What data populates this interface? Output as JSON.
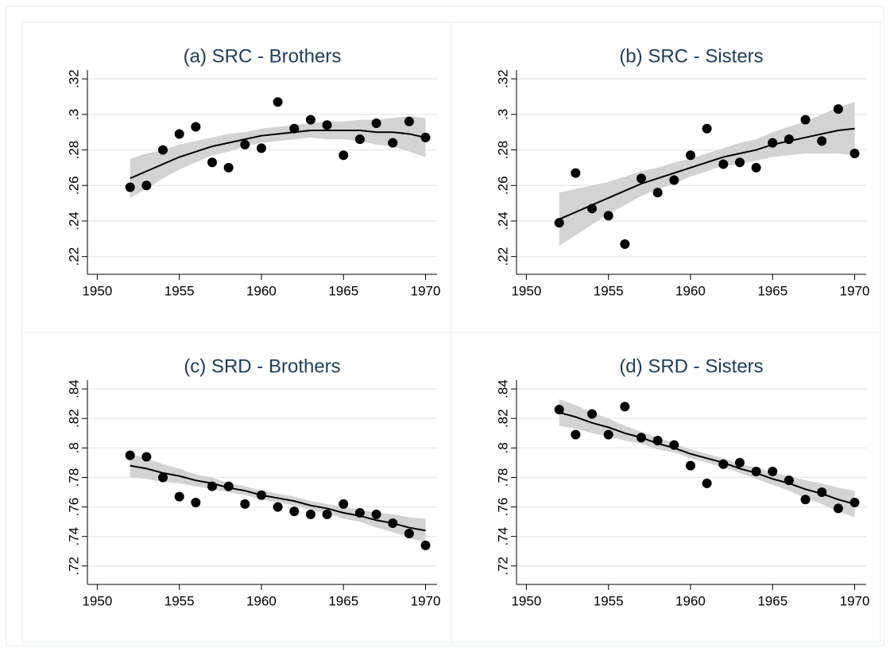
{
  "chart_data": [
    {
      "type": "scatter",
      "title": "(a) SRC - Brothers",
      "x": [
        1952,
        1953,
        1954,
        1955,
        1956,
        1957,
        1958,
        1959,
        1960,
        1961,
        1962,
        1963,
        1964,
        1965,
        1966,
        1967,
        1968,
        1969,
        1970
      ],
      "values": [
        0.259,
        0.26,
        0.28,
        0.289,
        0.293,
        0.273,
        0.27,
        0.283,
        0.281,
        0.307,
        0.292,
        0.297,
        0.294,
        0.277,
        0.286,
        0.295,
        0.284,
        0.296,
        0.287
      ],
      "fit": [
        0.264,
        0.268,
        0.272,
        0.276,
        0.279,
        0.282,
        0.284,
        0.286,
        0.288,
        0.289,
        0.29,
        0.291,
        0.291,
        0.291,
        0.291,
        0.29,
        0.29,
        0.289,
        0.287
      ],
      "ci_lower": [
        0.253,
        0.258,
        0.264,
        0.269,
        0.273,
        0.277,
        0.279,
        0.282,
        0.284,
        0.285,
        0.286,
        0.287,
        0.286,
        0.286,
        0.285,
        0.283,
        0.282,
        0.279,
        0.276
      ],
      "ci_upper": [
        0.275,
        0.278,
        0.28,
        0.283,
        0.285,
        0.287,
        0.289,
        0.29,
        0.292,
        0.293,
        0.294,
        0.295,
        0.296,
        0.296,
        0.297,
        0.297,
        0.298,
        0.299,
        0.298
      ],
      "color": "#000000",
      "ci_color": "#d3d3d3",
      "xlim": [
        1949.4,
        1970.7
      ],
      "xticks": [
        1950,
        1955,
        1960,
        1965,
        1970
      ],
      "ylim": [
        0.21,
        0.325
      ],
      "yticks": [
        {
          "value": 0.22,
          "label": ".22"
        },
        {
          "value": 0.24,
          "label": ".24"
        },
        {
          "value": 0.26,
          "label": ".26"
        },
        {
          "value": 0.28,
          "label": ".28"
        },
        {
          "value": 0.3,
          "label": ".3"
        },
        {
          "value": 0.32,
          "label": ".32"
        }
      ],
      "grid": true
    },
    {
      "type": "scatter",
      "title": "(b) SRC - Sisters",
      "x": [
        1952,
        1953,
        1954,
        1955,
        1956,
        1957,
        1958,
        1959,
        1960,
        1961,
        1962,
        1963,
        1964,
        1965,
        1966,
        1967,
        1968,
        1969,
        1970
      ],
      "values": [
        0.239,
        0.267,
        0.247,
        0.243,
        0.227,
        0.264,
        0.256,
        0.263,
        0.277,
        0.292,
        0.272,
        0.273,
        0.27,
        0.284,
        0.286,
        0.297,
        0.285,
        0.303,
        0.278
      ],
      "fit": [
        0.241,
        0.245,
        0.249,
        0.253,
        0.257,
        0.261,
        0.264,
        0.267,
        0.27,
        0.273,
        0.276,
        0.278,
        0.28,
        0.283,
        0.285,
        0.287,
        0.289,
        0.291,
        0.292
      ],
      "ci_lower": [
        0.226,
        0.232,
        0.238,
        0.244,
        0.249,
        0.254,
        0.258,
        0.261,
        0.265,
        0.268,
        0.271,
        0.272,
        0.274,
        0.276,
        0.277,
        0.278,
        0.278,
        0.278,
        0.277
      ],
      "ci_upper": [
        0.256,
        0.258,
        0.26,
        0.262,
        0.265,
        0.268,
        0.27,
        0.273,
        0.275,
        0.278,
        0.281,
        0.284,
        0.286,
        0.29,
        0.293,
        0.296,
        0.3,
        0.304,
        0.307
      ],
      "color": "#000000",
      "ci_color": "#d3d3d3",
      "xlim": [
        1949.4,
        1970.7
      ],
      "xticks": [
        1950,
        1955,
        1960,
        1965,
        1970
      ],
      "ylim": [
        0.21,
        0.325
      ],
      "yticks": [
        {
          "value": 0.22,
          "label": ".22"
        },
        {
          "value": 0.24,
          "label": ".24"
        },
        {
          "value": 0.26,
          "label": ".26"
        },
        {
          "value": 0.28,
          "label": ".28"
        },
        {
          "value": 0.3,
          "label": ".3"
        },
        {
          "value": 0.32,
          "label": ".32"
        }
      ],
      "grid": true
    },
    {
      "type": "scatter",
      "title": "(c) SRD - Brothers",
      "x": [
        1952,
        1953,
        1954,
        1955,
        1956,
        1957,
        1958,
        1959,
        1960,
        1961,
        1962,
        1963,
        1964,
        1965,
        1966,
        1967,
        1968,
        1969,
        1970
      ],
      "values": [
        0.795,
        0.794,
        0.78,
        0.767,
        0.763,
        0.774,
        0.774,
        0.762,
        0.768,
        0.76,
        0.757,
        0.755,
        0.755,
        0.762,
        0.756,
        0.755,
        0.749,
        0.742,
        0.734
      ],
      "fit": [
        0.788,
        0.786,
        0.783,
        0.781,
        0.778,
        0.776,
        0.773,
        0.771,
        0.768,
        0.766,
        0.764,
        0.761,
        0.759,
        0.756,
        0.754,
        0.751,
        0.749,
        0.746,
        0.744
      ],
      "ci_lower": [
        0.78,
        0.779,
        0.777,
        0.776,
        0.774,
        0.772,
        0.77,
        0.768,
        0.765,
        0.763,
        0.761,
        0.758,
        0.756,
        0.752,
        0.75,
        0.746,
        0.743,
        0.739,
        0.736
      ],
      "ci_upper": [
        0.796,
        0.793,
        0.789,
        0.786,
        0.782,
        0.78,
        0.776,
        0.774,
        0.771,
        0.769,
        0.767,
        0.764,
        0.762,
        0.76,
        0.758,
        0.756,
        0.755,
        0.753,
        0.752
      ],
      "color": "#000000",
      "ci_color": "#d3d3d3",
      "xlim": [
        1949.4,
        1970.7
      ],
      "xticks": [
        1950,
        1955,
        1960,
        1965,
        1970
      ],
      "ylim": [
        0.7075,
        0.846
      ],
      "yticks": [
        {
          "value": 0.72,
          "label": ".72"
        },
        {
          "value": 0.74,
          "label": ".74"
        },
        {
          "value": 0.76,
          "label": ".76"
        },
        {
          "value": 0.78,
          "label": ".78"
        },
        {
          "value": 0.8,
          "label": ".8"
        },
        {
          "value": 0.82,
          "label": ".82"
        },
        {
          "value": 0.84,
          "label": ".84"
        }
      ],
      "grid": true
    },
    {
      "type": "scatter",
      "title": "(d) SRD - Sisters",
      "x": [
        1952,
        1953,
        1954,
        1955,
        1956,
        1957,
        1958,
        1959,
        1960,
        1961,
        1962,
        1963,
        1964,
        1965,
        1966,
        1967,
        1968,
        1969,
        1970
      ],
      "values": [
        0.826,
        0.809,
        0.823,
        0.809,
        0.828,
        0.807,
        0.805,
        0.802,
        0.788,
        0.776,
        0.789,
        0.79,
        0.784,
        0.784,
        0.778,
        0.765,
        0.77,
        0.759,
        0.763
      ],
      "fit": [
        0.824,
        0.821,
        0.817,
        0.814,
        0.81,
        0.807,
        0.803,
        0.8,
        0.796,
        0.793,
        0.79,
        0.786,
        0.783,
        0.779,
        0.776,
        0.772,
        0.769,
        0.765,
        0.762
      ],
      "ci_lower": [
        0.815,
        0.813,
        0.81,
        0.808,
        0.805,
        0.803,
        0.799,
        0.797,
        0.793,
        0.79,
        0.787,
        0.783,
        0.779,
        0.775,
        0.771,
        0.766,
        0.762,
        0.757,
        0.753
      ],
      "ci_upper": [
        0.833,
        0.829,
        0.824,
        0.82,
        0.815,
        0.811,
        0.807,
        0.803,
        0.799,
        0.796,
        0.793,
        0.789,
        0.787,
        0.783,
        0.781,
        0.778,
        0.776,
        0.773,
        0.771
      ],
      "color": "#000000",
      "ci_color": "#d3d3d3",
      "xlim": [
        1949.4,
        1970.7
      ],
      "xticks": [
        1950,
        1955,
        1960,
        1965,
        1970
      ],
      "ylim": [
        0.7075,
        0.846
      ],
      "yticks": [
        {
          "value": 0.72,
          "label": ".72"
        },
        {
          "value": 0.74,
          "label": ".74"
        },
        {
          "value": 0.76,
          "label": ".76"
        },
        {
          "value": 0.78,
          "label": ".78"
        },
        {
          "value": 0.8,
          "label": ".8"
        },
        {
          "value": 0.82,
          "label": ".82"
        },
        {
          "value": 0.84,
          "label": ".84"
        }
      ],
      "grid": true
    }
  ]
}
